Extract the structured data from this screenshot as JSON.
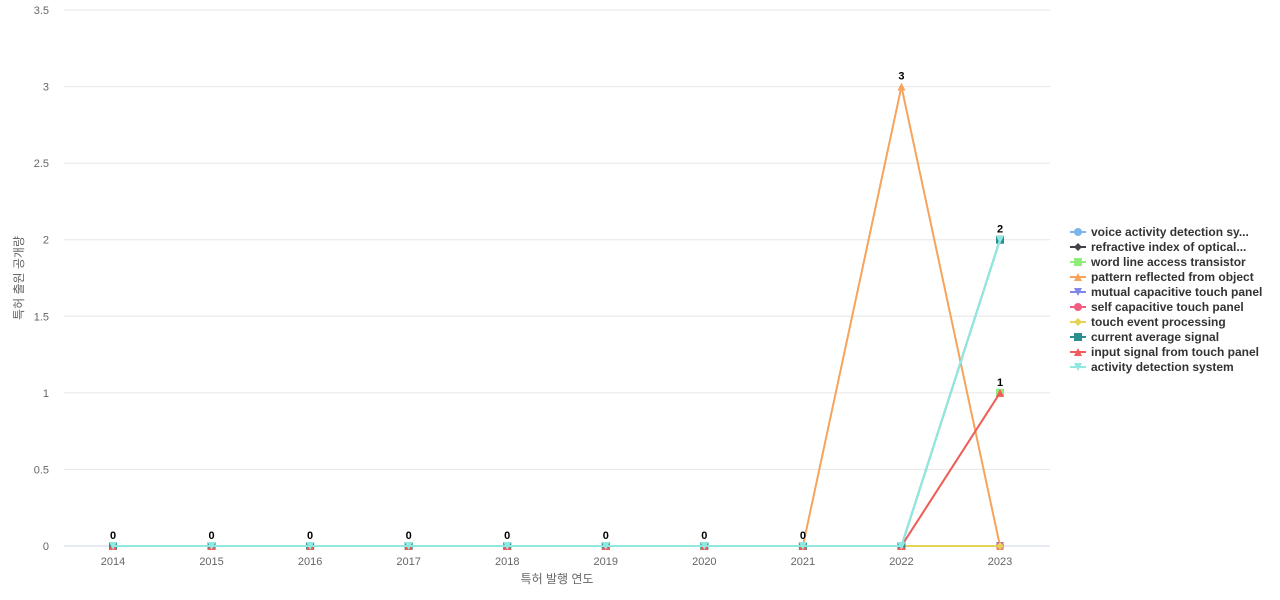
{
  "chart_data": {
    "type": "line",
    "xlabel": "특허 발행 연도",
    "ylabel": "특허 출원 공개량",
    "x": [
      "2014",
      "2015",
      "2016",
      "2017",
      "2018",
      "2019",
      "2020",
      "2021",
      "2022",
      "2023"
    ],
    "ylim": [
      0,
      3.5
    ],
    "yticks": [
      "0",
      "0.5",
      "1",
      "1.5",
      "2",
      "2.5",
      "3",
      "3.5"
    ],
    "grid": true,
    "legend_position": "right",
    "series": [
      {
        "name": "voice activity detection sy...",
        "color": "#7cb5ec",
        "marker": "circle",
        "values": [
          0,
          0,
          0,
          0,
          0,
          0,
          0,
          0,
          0,
          0
        ]
      },
      {
        "name": "refractive index of optical...",
        "color": "#434348",
        "marker": "diamond",
        "values": [
          0,
          0,
          0,
          0,
          0,
          0,
          0,
          0,
          0,
          0
        ]
      },
      {
        "name": "word line access transistor",
        "color": "#90ed7d",
        "marker": "square",
        "values": [
          0,
          0,
          0,
          0,
          0,
          0,
          0,
          0,
          0,
          1
        ]
      },
      {
        "name": "pattern reflected from object",
        "color": "#f7a35c",
        "marker": "triangle",
        "values": [
          0,
          0,
          0,
          0,
          0,
          0,
          0,
          0,
          3,
          0
        ]
      },
      {
        "name": "mutual capacitive touch panel",
        "color": "#8085e9",
        "marker": "triangle-down",
        "values": [
          0,
          0,
          0,
          0,
          0,
          0,
          0,
          0,
          0,
          0
        ]
      },
      {
        "name": "self capacitive touch panel",
        "color": "#f15c80",
        "marker": "circle",
        "values": [
          0,
          0,
          0,
          0,
          0,
          0,
          0,
          0,
          0,
          0
        ]
      },
      {
        "name": "touch event processing",
        "color": "#e4d354",
        "marker": "diamond",
        "values": [
          0,
          0,
          0,
          0,
          0,
          0,
          0,
          0,
          0,
          0
        ]
      },
      {
        "name": "current average signal",
        "color": "#2b908f",
        "marker": "square",
        "values": [
          0,
          0,
          0,
          0,
          0,
          0,
          0,
          0,
          0,
          2
        ]
      },
      {
        "name": "input signal from touch panel",
        "color": "#f45b5b",
        "marker": "triangle",
        "values": [
          0,
          0,
          0,
          0,
          0,
          0,
          0,
          0,
          0,
          1
        ]
      },
      {
        "name": "activity detection system",
        "color": "#91e8e1",
        "marker": "triangle-down",
        "values": [
          0,
          0,
          0,
          0,
          0,
          0,
          0,
          0,
          0,
          2
        ]
      }
    ]
  }
}
